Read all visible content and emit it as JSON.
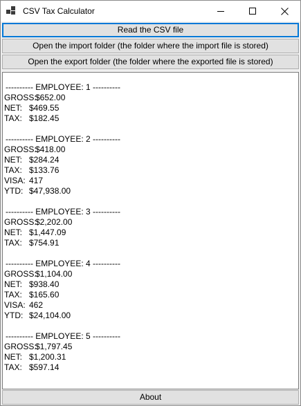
{
  "window": {
    "title": "CSV Tax Calculator"
  },
  "buttons": {
    "read_csv": "Read the CSV file",
    "open_import": "Open the import folder (the folder where the import file is stored)",
    "open_export": "Open the export folder (the folder where the exported file is stored)",
    "about": "About"
  },
  "employees": [
    {
      "header": "---------- EMPLOYEE: 1 ----------",
      "lines": [
        {
          "label": "GROSS:",
          "value": "$652.00"
        },
        {
          "label": "NET:",
          "value": "$469.55"
        },
        {
          "label": "TAX:",
          "value": "$182.45"
        }
      ]
    },
    {
      "header": "---------- EMPLOYEE: 2 ----------",
      "lines": [
        {
          "label": "GROSS:",
          "value": "$418.00"
        },
        {
          "label": "NET:",
          "value": "$284.24"
        },
        {
          "label": "TAX:",
          "value": "$133.76"
        },
        {
          "label": "VISA:",
          "value": "417"
        },
        {
          "label": "YTD:",
          "value": "$47,938.00"
        }
      ]
    },
    {
      "header": "---------- EMPLOYEE: 3 ----------",
      "lines": [
        {
          "label": "GROSS:",
          "value": "$2,202.00"
        },
        {
          "label": "NET:",
          "value": "$1,447.09"
        },
        {
          "label": "TAX:",
          "value": "$754.91"
        }
      ]
    },
    {
      "header": "---------- EMPLOYEE: 4 ----------",
      "lines": [
        {
          "label": "GROSS:",
          "value": "$1,104.00"
        },
        {
          "label": "NET:",
          "value": "$938.40"
        },
        {
          "label": "TAX:",
          "value": "$165.60"
        },
        {
          "label": "VISA:",
          "value": "462"
        },
        {
          "label": "YTD:",
          "value": "$24,104.00"
        }
      ]
    },
    {
      "header": "---------- EMPLOYEE: 5 ----------",
      "lines": [
        {
          "label": "GROSS:",
          "value": "$1,797.45"
        },
        {
          "label": "NET:",
          "value": "$1,200.31"
        },
        {
          "label": "TAX:",
          "value": "$597.14"
        }
      ]
    }
  ]
}
